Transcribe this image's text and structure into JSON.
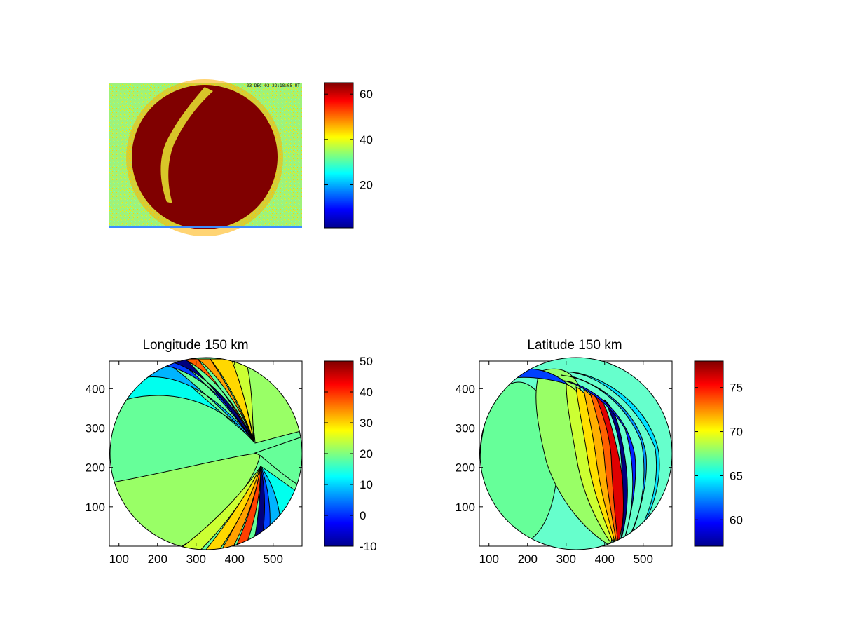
{
  "figure": {
    "stamp_text": "03-DEC-03 22:18:05 UT"
  },
  "chart_data": [
    {
      "type": "heatmap",
      "panel": "top-left",
      "title": "",
      "description": "raw all-sky camera image, circular auroral region saturated at top of colour scale on a mid-level noisy background",
      "background_level": 35,
      "disc_level": 65,
      "arc_level": 40,
      "colorbar": {
        "colormap": "jet",
        "clim": [
          1,
          65
        ],
        "ticks": [
          20,
          40,
          60
        ]
      }
    },
    {
      "type": "heatmap",
      "panel": "bottom-left",
      "title": "Longitude 150 km",
      "xlim": [
        75,
        575
      ],
      "ylim": [
        0,
        470
      ],
      "xticks": [
        100,
        200,
        300,
        400,
        500
      ],
      "yticks": [
        100,
        200,
        300,
        400
      ],
      "colorbar": {
        "colormap": "jet",
        "clim": [
          -10,
          50
        ],
        "ticks": [
          -10,
          0,
          10,
          20,
          30,
          40,
          50
        ]
      },
      "contour_regions": [
        {
          "name": "west background",
          "value": 20
        },
        {
          "name": "southwest band",
          "value": 24
        },
        {
          "name": "north fan",
          "value": 14
        },
        {
          "name": "northeast wedge",
          "value": 24
        },
        {
          "name": "east wedge",
          "value": 20
        },
        {
          "name": "southeast fan",
          "value": 12
        },
        {
          "name": "north discontinuity range",
          "value_min": -10,
          "value_max": 50
        },
        {
          "name": "south discontinuity range",
          "value_min": -10,
          "value_max": 40
        }
      ]
    },
    {
      "type": "heatmap",
      "panel": "bottom-right",
      "title": "Latitude 150 km",
      "xlim": [
        75,
        575
      ],
      "ylim": [
        0,
        470
      ],
      "xticks": [
        100,
        200,
        300,
        400,
        500
      ],
      "yticks": [
        100,
        200,
        300,
        400
      ],
      "colorbar": {
        "colormap": "jet",
        "clim": [
          57,
          78
        ],
        "ticks": [
          60,
          65,
          70,
          75
        ]
      },
      "contour_regions": [
        {
          "name": "outer rim",
          "value": 66
        },
        {
          "name": "west oval",
          "value": 67
        },
        {
          "name": "central band",
          "value": 70
        },
        {
          "name": "gradient range",
          "value_min": 57,
          "value_max": 77
        },
        {
          "name": "east rim",
          "value": 65
        }
      ]
    }
  ]
}
